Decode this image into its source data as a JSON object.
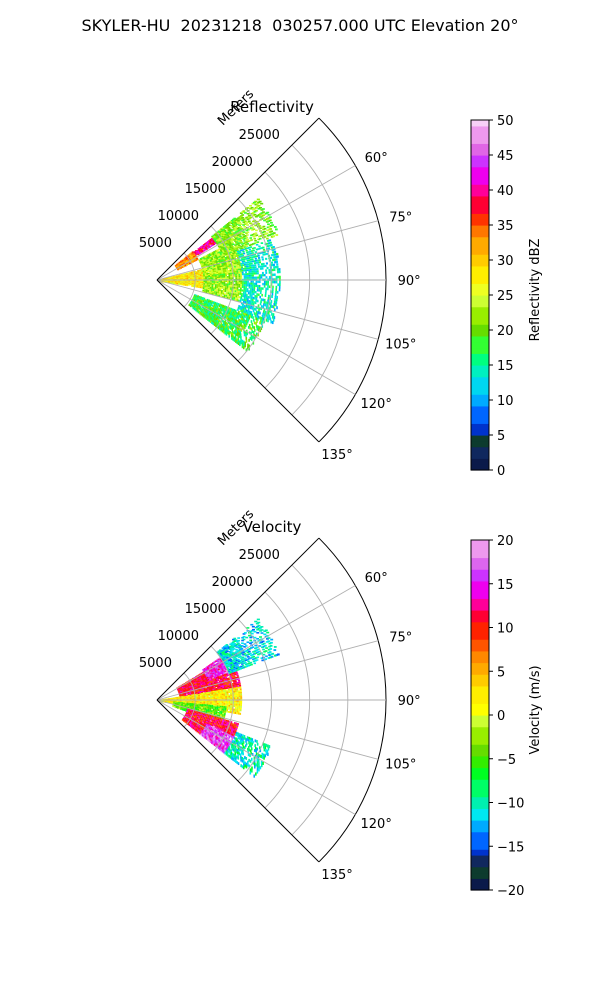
{
  "figure": {
    "suptitle": "SKYLER-HU  20231218  030257.000 UTC Elevation 20°"
  },
  "chart_data": [
    {
      "type": "heatmap",
      "subtype": "polar-sector (PPI)",
      "title": "Reflectivity",
      "range_label": "Meters",
      "range_ticks": [
        5000,
        10000,
        15000,
        20000,
        25000
      ],
      "range_max": 30000,
      "azimuth_ticks": [
        "60°",
        "75°",
        "90°",
        "105°",
        "120°",
        "135°"
      ],
      "azimuth_tick_values": [
        60,
        75,
        90,
        105,
        120,
        135
      ],
      "azimuth_range": [
        45,
        135
      ],
      "grid": true,
      "colorbar": {
        "label": "Reflectivity dBZ",
        "ticks": [
          "0",
          "5",
          "10",
          "15",
          "20",
          "25",
          "30",
          "35",
          "40",
          "45",
          "50"
        ],
        "range": [
          0,
          50
        ]
      },
      "echo_regions": [
        {
          "az": [
            52,
            58
          ],
          "r": [
            5500,
            9500
          ],
          "value": 40
        },
        {
          "az": [
            50,
            62
          ],
          "r": [
            3000,
            6000
          ],
          "value": 33
        },
        {
          "az": [
            75,
            100
          ],
          "r": [
            0,
            7000
          ],
          "value": 28
        },
        {
          "az": [
            62,
            104
          ],
          "r": [
            6000,
            12000
          ],
          "value": 22
        },
        {
          "az": [
            50,
            70
          ],
          "r": [
            9000,
            17000
          ],
          "value": 21
        },
        {
          "az": [
            70,
            110
          ],
          "r": [
            11000,
            16000
          ],
          "value": 14
        },
        {
          "az": [
            110,
            128
          ],
          "r": [
            5000,
            15000
          ],
          "value": 18
        }
      ]
    },
    {
      "type": "heatmap",
      "subtype": "polar-sector (PPI)",
      "title": "Velocity",
      "range_label": "Meters",
      "range_ticks": [
        5000,
        10000,
        15000,
        20000,
        25000
      ],
      "range_max": 30000,
      "azimuth_ticks": [
        "60°",
        "75°",
        "90°",
        "105°",
        "120°",
        "135°"
      ],
      "azimuth_tick_values": [
        60,
        75,
        90,
        105,
        120,
        135
      ],
      "azimuth_range": [
        45,
        135
      ],
      "grid": true,
      "colorbar": {
        "label": "Velocity (m/s)",
        "ticks": [
          "−20",
          "−15",
          "−10",
          "−5",
          "0",
          "5",
          "10",
          "15",
          "20"
        ],
        "range": [
          -20,
          20
        ]
      },
      "echo_regions": [
        {
          "az": [
            58,
            80
          ],
          "r": [
            3000,
            11000
          ],
          "value": 11
        },
        {
          "az": [
            55,
            68
          ],
          "r": [
            7000,
            12000
          ],
          "value": 15
        },
        {
          "az": [
            80,
            100
          ],
          "r": [
            0,
            11000
          ],
          "value": 2
        },
        {
          "az": [
            95,
            110
          ],
          "r": [
            2000,
            9000
          ],
          "value": -4
        },
        {
          "az": [
            50,
            70
          ],
          "r": [
            10000,
            17000
          ],
          "value": -11
        },
        {
          "az": [
            105,
            128
          ],
          "r": [
            4000,
            11000
          ],
          "value": 11
        },
        {
          "az": [
            115,
            128
          ],
          "r": [
            7000,
            13000
          ],
          "value": 16
        },
        {
          "az": [
            112,
            128
          ],
          "r": [
            11000,
            16000
          ],
          "value": -10
        }
      ]
    }
  ]
}
